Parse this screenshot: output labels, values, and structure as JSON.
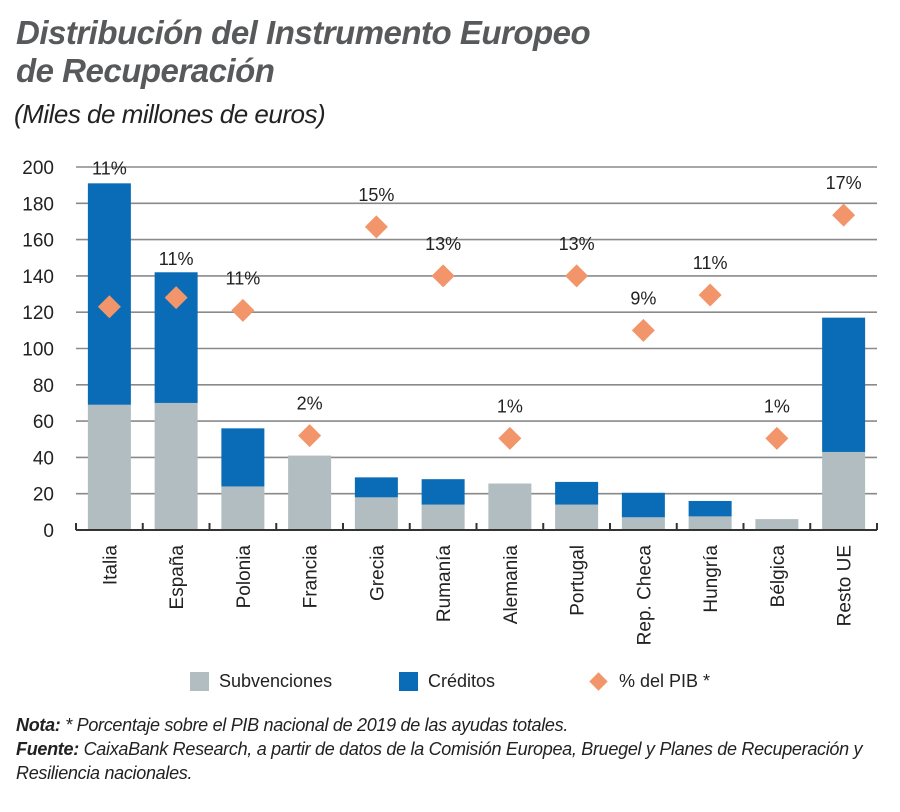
{
  "header": {
    "title_line1": "Distribución del Instrumento Europeo",
    "title_line2": "de Recuperación",
    "subtitle": "(Miles de millones de euros)"
  },
  "colors": {
    "subvenciones": "#b1bdc1",
    "creditos": "#0a6cb6",
    "pib": "#f2956a",
    "grid": "#8a8a8a",
    "axis": "#333333"
  },
  "chart_data": {
    "type": "bar",
    "stacked": true,
    "title": "Distribución del Instrumento Europeo de Recuperación",
    "subtitle": "(Miles de millones de euros)",
    "xlabel": "",
    "ylabel": "",
    "ylim": [
      0,
      200
    ],
    "yticks": [
      0,
      20,
      40,
      60,
      80,
      100,
      120,
      140,
      160,
      180,
      200
    ],
    "grid": true,
    "categories": [
      "Italia",
      "España",
      "Polonia",
      "Francia",
      "Grecia",
      "Rumanía",
      "Alemania",
      "Portugal",
      "Rep. Checa",
      "Hungría",
      "Bélgica",
      "Resto UE"
    ],
    "series": [
      {
        "name": "Subvenciones",
        "values": [
          69,
          70,
          24,
          41,
          18,
          14,
          25.6,
          14,
          7,
          7.5,
          6,
          43
        ]
      },
      {
        "name": "Créditos",
        "values": [
          122,
          72,
          32,
          0,
          11,
          14,
          0,
          12.5,
          13.5,
          8.5,
          0,
          74
        ]
      }
    ],
    "markers": {
      "name": "% del PIB *",
      "labels": [
        "11%",
        "11%",
        "11%",
        "2%",
        "15%",
        "13%",
        "1%",
        "13%",
        "9%",
        "11%",
        "1%",
        "17%"
      ],
      "values_pct": [
        11,
        11,
        11,
        2,
        15,
        13,
        1,
        13,
        9,
        11,
        1,
        17
      ],
      "plotted_y": [
        123,
        128,
        121,
        52,
        167,
        140,
        50.5,
        140,
        110,
        129.5,
        50.5,
        173.5
      ]
    },
    "legend": {
      "position": "bottom",
      "items": [
        "Subvenciones",
        "Créditos",
        "% del PIB *"
      ]
    }
  },
  "notes": {
    "nota_label": "Nota:",
    "nota_text": " * Porcentaje sobre el PIB nacional de 2019 de las ayudas totales.",
    "fuente_label": "Fuente:",
    "fuente_text": " CaixaBank Research, a partir de datos de la Comisión Europea, Bruegel y Planes de Recuperación y Resiliencia nacionales."
  }
}
